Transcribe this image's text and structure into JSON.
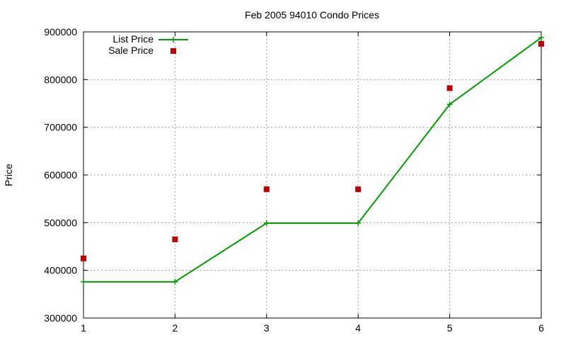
{
  "chart_data": {
    "type": "line",
    "title": "Feb 2005 94010 Condo Prices",
    "xlabel": "",
    "ylabel": "Price",
    "xlim": [
      1,
      6
    ],
    "ylim": [
      300000,
      900000
    ],
    "x_ticks": [
      1,
      2,
      3,
      4,
      5,
      6
    ],
    "y_ticks": [
      300000,
      400000,
      500000,
      600000,
      700000,
      800000,
      900000
    ],
    "grid": true,
    "legend_position": "top-left",
    "series": [
      {
        "name": "List Price",
        "style": "line-with-plus-markers",
        "color": "#00a000",
        "x": [
          1,
          2,
          3,
          4,
          5,
          6
        ],
        "y": [
          376000,
          376000,
          499000,
          499000,
          748000,
          888000
        ]
      },
      {
        "name": "Sale Price",
        "style": "square-markers",
        "color": "#c00000",
        "x": [
          1,
          2,
          3,
          4,
          5,
          6
        ],
        "y": [
          425000,
          465000,
          570000,
          570000,
          782000,
          875000
        ]
      }
    ]
  }
}
